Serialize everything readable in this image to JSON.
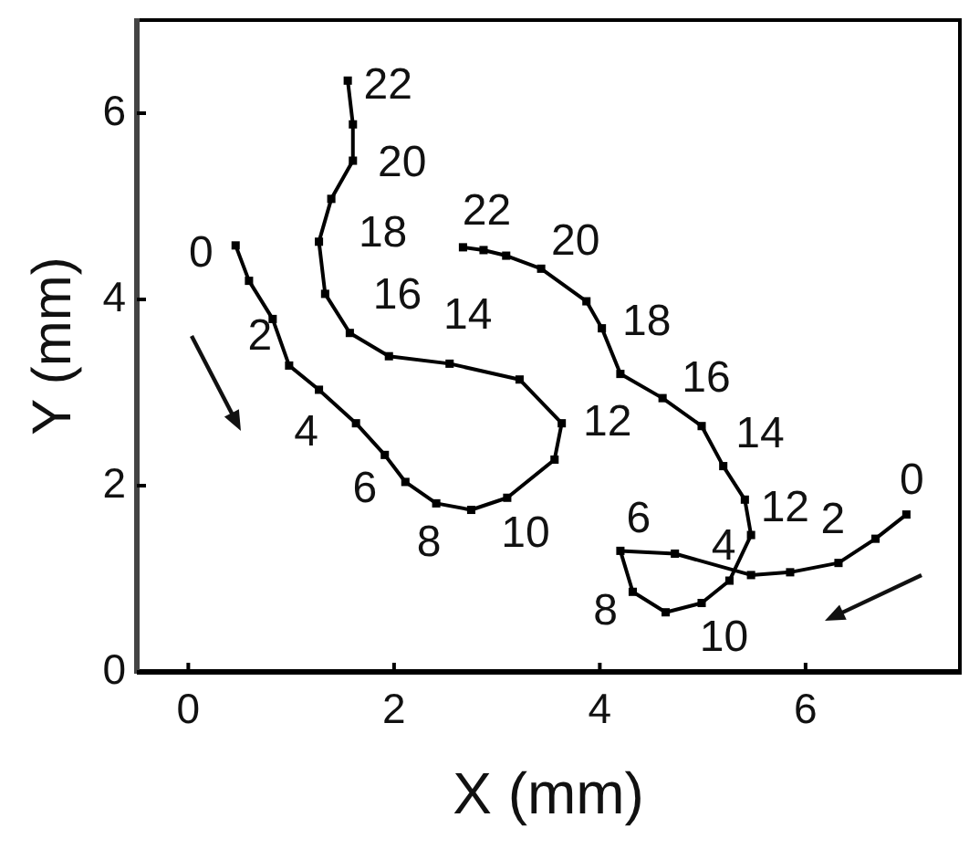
{
  "chart_data": {
    "type": "line",
    "xlabel": "X (mm)",
    "ylabel": "Y (mm)",
    "xlim": [
      -0.5,
      7.5
    ],
    "ylim": [
      0,
      7
    ],
    "xticks": [
      0,
      2,
      4,
      6
    ],
    "yticks": [
      0,
      2,
      4,
      6
    ],
    "marker": "square",
    "line_style": "solid",
    "series": [
      {
        "color": "#000000",
        "x": [
          0.46,
          0.59,
          0.82,
          0.98,
          1.27,
          1.63,
          1.91,
          2.11,
          2.41,
          2.75,
          3.1,
          3.56,
          3.63,
          3.22,
          2.54,
          1.95,
          1.57,
          1.33,
          1.27,
          1.39,
          1.6,
          1.6,
          1.55
        ],
        "values": [
          4.58,
          4.2,
          3.79,
          3.29,
          3.03,
          2.67,
          2.33,
          2.04,
          1.81,
          1.74,
          1.87,
          2.28,
          2.67,
          3.14,
          3.31,
          3.39,
          3.64,
          4.06,
          4.62,
          5.08,
          5.49,
          5.88,
          6.35
        ]
      },
      {
        "color": "#000000",
        "x": [
          6.98,
          6.68,
          6.32,
          5.85,
          5.47,
          4.73,
          4.2,
          4.32,
          4.64,
          4.99,
          5.26,
          5.47,
          5.41,
          5.2,
          4.99,
          4.61,
          4.2,
          4.02,
          3.87,
          3.43,
          3.09,
          2.87,
          2.67
        ],
        "values": [
          1.69,
          1.43,
          1.17,
          1.07,
          1.04,
          1.27,
          1.3,
          0.86,
          0.64,
          0.74,
          0.98,
          1.47,
          1.85,
          2.21,
          2.64,
          2.94,
          3.2,
          3.69,
          3.98,
          4.33,
          4.47,
          4.53,
          4.56
        ]
      }
    ],
    "annotations": [
      {
        "text": "0",
        "x": 0.46,
        "y": 4.58
      },
      {
        "text": "2",
        "x": 0.82,
        "y": 3.79
      },
      {
        "text": "4",
        "x": 1.27,
        "y": 3.03
      },
      {
        "text": "6",
        "x": 1.91,
        "y": 2.33
      },
      {
        "text": "8",
        "x": 2.41,
        "y": 1.81
      },
      {
        "text": "10",
        "x": 3.1,
        "y": 1.87
      },
      {
        "text": "12",
        "x": 3.63,
        "y": 2.67
      },
      {
        "text": "14",
        "x": 2.54,
        "y": 3.31
      },
      {
        "text": "16",
        "x": 1.57,
        "y": 3.64
      },
      {
        "text": "18",
        "x": 1.27,
        "y": 4.62
      },
      {
        "text": "20",
        "x": 1.6,
        "y": 5.49
      },
      {
        "text": "22",
        "x": 1.55,
        "y": 6.35
      },
      {
        "text": "0",
        "x": 6.98,
        "y": 1.69
      },
      {
        "text": "2",
        "x": 6.32,
        "y": 1.17
      },
      {
        "text": "4",
        "x": 5.47,
        "y": 1.04
      },
      {
        "text": "6",
        "x": 4.2,
        "y": 1.3
      },
      {
        "text": "8",
        "x": 4.64,
        "y": 0.64
      },
      {
        "text": "10",
        "x": 5.26,
        "y": 0.98
      },
      {
        "text": "12",
        "x": 5.41,
        "y": 1.85
      },
      {
        "text": "14",
        "x": 4.99,
        "y": 2.64
      },
      {
        "text": "16",
        "x": 4.2,
        "y": 3.2
      },
      {
        "text": "18",
        "x": 3.87,
        "y": 3.98
      },
      {
        "text": "20",
        "x": 3.09,
        "y": 4.47
      },
      {
        "text": "22",
        "x": 2.67,
        "y": 4.56
      }
    ]
  }
}
